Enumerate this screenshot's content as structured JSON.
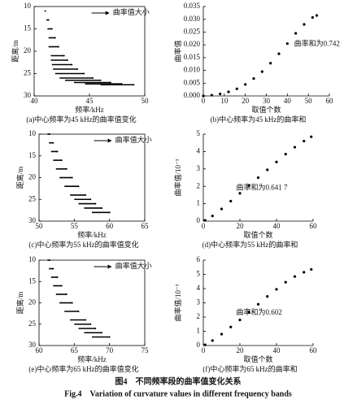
{
  "chart_data": [
    {
      "type": "scatter",
      "y_inverted": true,
      "frame": true,
      "xlabel": "频率/kHz",
      "ylabel": "距离/m",
      "legend": "曲率值大小",
      "caption": "(a)中心频率为45 kHz的曲率值变化",
      "xlim": [
        40,
        50
      ],
      "xticks": [
        40,
        45,
        50
      ],
      "ylim": [
        10,
        30
      ],
      "yticks": [
        10,
        15,
        20,
        25,
        30
      ],
      "x": [
        41,
        41.3,
        41.6,
        41.9,
        42.2,
        42.7,
        43,
        43.4,
        43.9,
        44.5,
        45.3,
        46,
        46.9,
        47.9,
        49
      ],
      "values": [
        11,
        13,
        15,
        17,
        19,
        21,
        22,
        23,
        24,
        25,
        26,
        26.5,
        27,
        27.3,
        27.5
      ],
      "segments": [
        0,
        0.2,
        0.4,
        0.6,
        0.9,
        1.2,
        1.5,
        1.8,
        2.2,
        2.6,
        3,
        3.2,
        3.3,
        3.3,
        3
      ]
    },
    {
      "type": "scatter",
      "xlabel": "取值个数",
      "ylabel": "曲率值",
      "annotation": "曲率和为0.742",
      "caption": "(b)中心频率为45 kHz的曲率和",
      "xlim": [
        0,
        60
      ],
      "xticks": [
        0,
        10,
        20,
        30,
        40,
        50,
        60
      ],
      "ylim": [
        0,
        0.035
      ],
      "yticks": [
        {
          "value": 0,
          "label": "0.000"
        },
        {
          "value": 0.005,
          "label": "0.005"
        },
        {
          "value": 0.01,
          "label": "0.010"
        },
        {
          "value": 0.015,
          "label": "0.015"
        },
        {
          "value": 0.02,
          "label": "0.020"
        },
        {
          "value": 0.025,
          "label": "0.025"
        },
        {
          "value": 0.03,
          "label": "0.030"
        },
        {
          "value": 0.035,
          "label": "0.035"
        }
      ],
      "x": [
        0,
        4,
        8,
        12,
        16,
        20,
        24,
        28,
        32,
        36,
        40,
        44,
        48,
        52,
        54
      ],
      "values": [
        0,
        0.0003,
        0.0008,
        0.0016,
        0.0028,
        0.0045,
        0.0068,
        0.0095,
        0.0128,
        0.0165,
        0.0205,
        0.0245,
        0.028,
        0.0307,
        0.0315
      ]
    },
    {
      "type": "scatter",
      "y_inverted": true,
      "frame": true,
      "xlabel": "频率/kHz",
      "ylabel": "距离/m",
      "legend": "曲率值大小",
      "caption": "(c)中心频率为55 kHz的曲率值变化",
      "xlim": [
        50,
        65
      ],
      "xticks": [
        50,
        55,
        60,
        65
      ],
      "ylim": [
        10,
        30
      ],
      "yticks": [
        10,
        15,
        20,
        25,
        30
      ],
      "x": [
        51.5,
        52,
        52.6,
        53.2,
        53.9,
        54.7,
        55.6,
        56.6,
        57.3,
        58,
        58.9,
        60
      ],
      "values": [
        10,
        12,
        14,
        16,
        18,
        20,
        22,
        24,
        25,
        26,
        27,
        28
      ],
      "segments": [
        0.3,
        0.6,
        0.9,
        1.2,
        1.5,
        1.8,
        2,
        2.2,
        2.3,
        2.4,
        2.5,
        2.5
      ]
    },
    {
      "type": "scatter",
      "xlabel": "取值个数",
      "ylabel": "曲率值/10⁻³",
      "annotation": "曲率和为0.641 7",
      "caption": "(d)中心频率为55 kHz的曲率和",
      "xlim": [
        0,
        60
      ],
      "xticks": [
        0,
        20,
        40,
        60
      ],
      "ylim": [
        0,
        5
      ],
      "yticks": [
        0,
        1,
        2,
        3,
        4,
        5
      ],
      "x": [
        1,
        5,
        10,
        15,
        20,
        25,
        30,
        35,
        40,
        45,
        50,
        55,
        59
      ],
      "values": [
        0.05,
        0.3,
        0.7,
        1.15,
        1.6,
        2.05,
        2.5,
        2.95,
        3.4,
        3.85,
        4.25,
        4.6,
        4.85
      ]
    },
    {
      "type": "scatter",
      "y_inverted": true,
      "frame": true,
      "xlabel": "频率/kHz",
      "ylabel": "距离/m",
      "legend": "曲率值大小",
      "caption": "(e)中心频率为65 kHz的曲率值变化",
      "xlim": [
        60,
        75
      ],
      "xticks": [
        60,
        65,
        70,
        75
      ],
      "ylim": [
        10,
        30
      ],
      "yticks": [
        10,
        15,
        20,
        25,
        30
      ],
      "x": [
        61.5,
        62,
        62.6,
        63.2,
        63.9,
        64.7,
        65.6,
        66.6,
        67.3,
        68,
        68.9,
        70
      ],
      "values": [
        10,
        12,
        14,
        16,
        18,
        20,
        22,
        24,
        25,
        26,
        27,
        28
      ],
      "segments": [
        0.3,
        0.6,
        0.9,
        1.2,
        1.5,
        1.8,
        2,
        2.2,
        2.3,
        2.4,
        2.5,
        2.5
      ]
    },
    {
      "type": "scatter",
      "xlabel": "取值个数",
      "ylabel": "曲率值/10⁻³",
      "annotation": "曲率和为0.602",
      "caption": "(f)中心频率为65 kHz的曲率和",
      "xlim": [
        0,
        60
      ],
      "xticks": [
        0,
        20,
        40,
        60
      ],
      "ylim": [
        0,
        6
      ],
      "yticks": [
        0,
        1,
        2,
        3,
        4,
        5,
        6
      ],
      "x": [
        1,
        5,
        10,
        15,
        20,
        25,
        30,
        35,
        40,
        45,
        50,
        55,
        59
      ],
      "values": [
        0.05,
        0.35,
        0.8,
        1.3,
        1.8,
        2.35,
        2.9,
        3.45,
        3.95,
        4.45,
        4.85,
        5.15,
        5.35
      ]
    }
  ],
  "caption": "图4　不同频率段的曲率值变化关系",
  "caption_en": "Fig.4　Variation of curvature values in different frequency bands"
}
